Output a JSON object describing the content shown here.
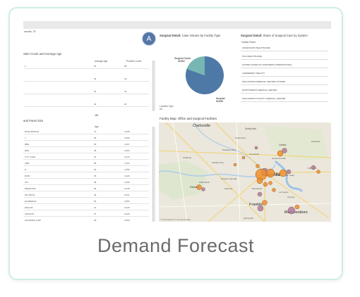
{
  "caption": "Demand Forecast",
  "badge": "A",
  "screen": {
    "top_left_fragment": "ansville, TN",
    "left_panel_title": "vider Count and Average Age",
    "left_col_headers": [
      "Average Age",
      "Provider Count"
    ],
    "left_rows": [
      {
        "name": "h",
        "age": "51",
        "count": "98"
      },
      {
        "name": "",
        "age": "46",
        "count": "49"
      },
      {
        "name": "",
        "age": "52",
        "count": "31"
      },
      {
        "name": "",
        "age": "43",
        "count": "20"
      }
    ],
    "left_total": "489",
    "panel_size_title": "and Panel Size",
    "panel_size_col": "Age",
    "panel_rows": [
      {
        "name": "ENCE BURGE",
        "age": "73",
        "count": "4,038"
      },
      {
        "name": "Y",
        "age": "59",
        "count": "3,609"
      },
      {
        "name": "DBE",
        "age": "66",
        "count": "4,197"
      },
      {
        "name": "ERS",
        "age": "48",
        "count": "4,094"
      },
      {
        "name": "OTT LOGE",
        "age": "61",
        "count": "4,379"
      },
      {
        "name": "AMP",
        "age": "58",
        "count": "3,754"
      },
      {
        "name": "R",
        "age": "59",
        "count": "3,355"
      },
      {
        "name": "ROW",
        "age": "53",
        "count": "3,420"
      },
      {
        "name": "ON",
        "age": "48",
        "count": "3,189"
      },
      {
        "name": "RIEDKAMP",
        "age": "56",
        "count": "3,048"
      },
      {
        "name": "HD PRICE",
        "age": "46",
        "count": "2,911"
      },
      {
        "name": "ELDREDGE",
        "age": "56",
        "count": "3,083"
      },
      {
        "name": "ENGUIN",
        "age": "41",
        "count": "2,929"
      },
      {
        "name": "UNDSON",
        "age": "37",
        "count": "2,943"
      },
      {
        "name": "WALDREN LORI",
        "age": "49",
        "count": "2,833"
      }
    ],
    "surgical_title_bold": "Surgical Detail:",
    "surgical_title_rest": " Case Volume by Facility Type",
    "pie_label_ambulatory": "Surgical Center",
    "pie_value_ambulatory": "26,562",
    "pie_label_hospital": "Hospital",
    "pie_value_hospital": "63,898",
    "location_type_label": "Location Type",
    "location_type_value": "All",
    "system_title_bold": "Surgical Detail:",
    "system_title_rest": " Share of Surgical Care by System",
    "system_col": "Facility Parent",
    "systems": [
      "ASCENSION HEALTHCARE",
      "HCA HEALTHCARE",
      "UNITED SURGICAL PARTNERS INTERNATIONAL",
      "VANDERBILT HEALTH",
      "WILLIAMSON MEDICAL CENTER SYSTEM",
      "NORTHCREST MEDICAL CENTER",
      "WILLIAMSON COUNTY MEDICAL CENTER"
    ],
    "map_title": "Facility Map: Office and Surgical Facilities",
    "map_places": {
      "clarksville": "Clarksville",
      "springfield": "Spring field",
      "gallatin": "Gallatin",
      "hartsville": "Hartsville",
      "cottontown": "Cottontown",
      "hendersonville": "Hendersonville",
      "lebanon": "Lebanon",
      "nashville": "Nashville",
      "franklin": "Franklin",
      "murfreesboro": "Murfreesboro",
      "dickson": "Dickson",
      "ashland": "Ashland City",
      "kingston": "Kingston Springs",
      "white_bluff": "White Bluff",
      "charlotte": "Charlotte",
      "brentwood": "Brentwood",
      "fairview": "Fairview",
      "mt_juliet": "Mt. Juliet",
      "la_vergne": "La Vergne",
      "smyrna": "Smyrna",
      "spring_hill": "Spring Hill",
      "greenbrier": "Greenbrier",
      "pleasant_view": "Pleasant View"
    },
    "map_attribution": "© 2022 Mapbox © OpenStreetMap"
  },
  "colors": {
    "card_border": "#cfeee5",
    "pie_hospital": "#4e79a7",
    "pie_surgical": "#76b7b2",
    "marker_orange": "#f28e2b",
    "marker_purple": "#b07aa1"
  }
}
